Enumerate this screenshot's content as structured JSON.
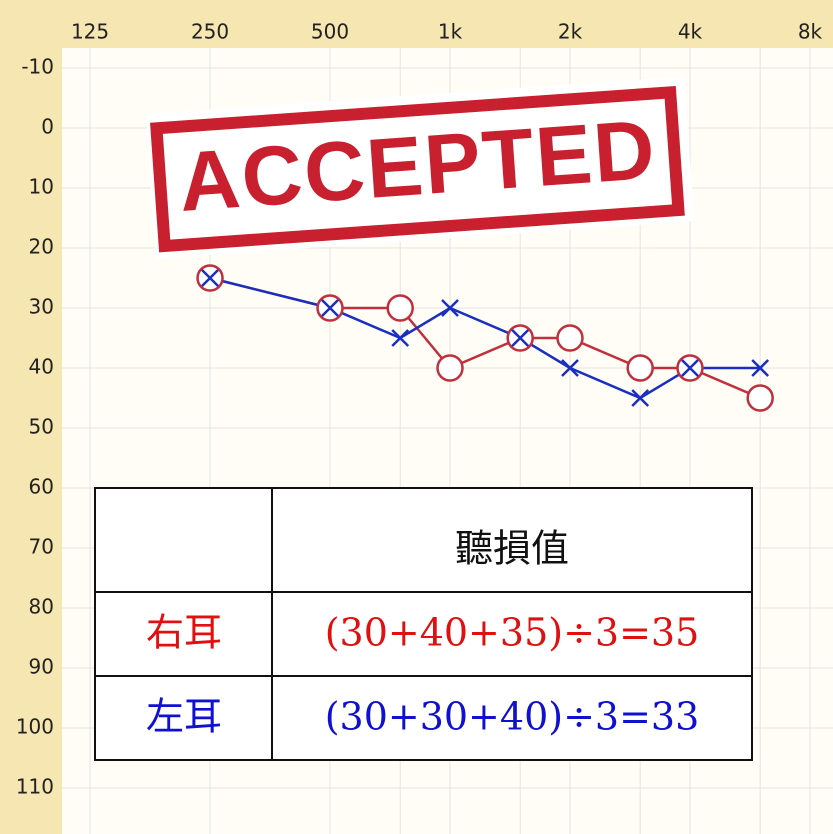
{
  "chart_data": {
    "type": "line",
    "x": [
      250,
      500,
      750,
      1000,
      1500,
      2000,
      3000,
      4000,
      6000
    ],
    "series": [
      {
        "color": "#c0303c",
        "marker": "circle",
        "values": [
          25,
          30,
          30,
          40,
          35,
          35,
          40,
          40,
          45
        ]
      },
      {
        "color": "#1a2fc0",
        "marker": "x",
        "values": [
          25,
          30,
          35,
          30,
          35,
          40,
          45,
          40,
          40
        ]
      }
    ],
    "xscale": "log",
    "xlim": [
      74.3,
      9138
    ],
    "xticks": [
      125,
      250,
      500,
      {
        "value": 1000,
        "label": "1k"
      },
      {
        "value": 2000,
        "label": "2k"
      },
      {
        "value": 4000,
        "label": "4k"
      },
      {
        "value": 8000,
        "label": "8k"
      }
    ],
    "xgrid_minor": [
      750,
      1500,
      3000,
      6000
    ],
    "ylim": [
      -10,
      120
    ],
    "yinverted": true,
    "yticks": [
      -10,
      0,
      10,
      20,
      30,
      40,
      50,
      60,
      70,
      80,
      90,
      100,
      110
    ],
    "grid": true
  },
  "stamp": "ACCEPTED",
  "table": {
    "header": "聽損值",
    "rows": [
      [
        "右耳",
        "(30+40+35)÷3=35"
      ],
      [
        "左耳",
        "(30+30+40)÷3=33"
      ]
    ]
  }
}
